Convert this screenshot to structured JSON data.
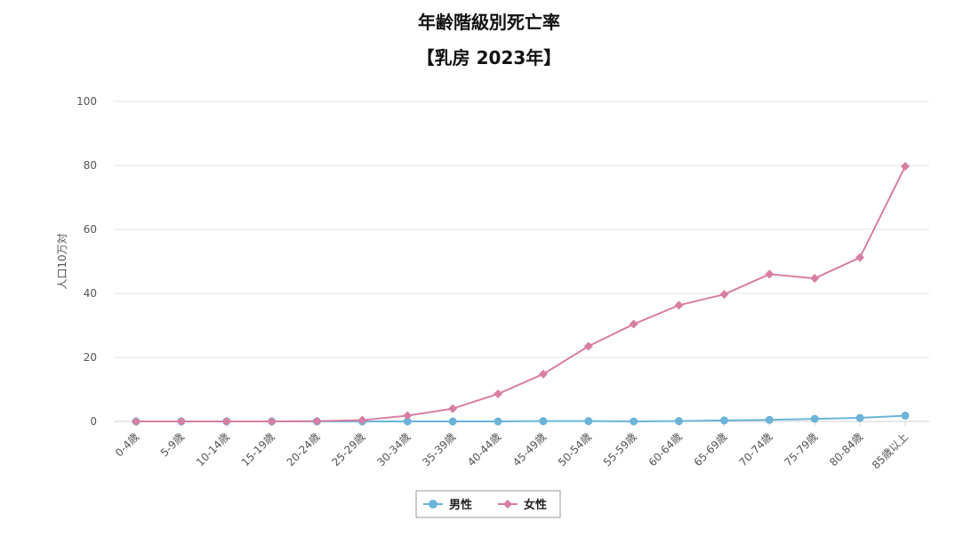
{
  "chart_data": {
    "type": "line",
    "title": "年齢階級別死亡率",
    "subtitle": "【乳房 2023年】",
    "ylabel": "人口10万対",
    "xlabel": "",
    "ylim": [
      0,
      100
    ],
    "yticks": [
      0,
      20,
      40,
      60,
      80,
      100
    ],
    "grid": true,
    "legend_position": "bottom-center",
    "categories": [
      "0-4歳",
      "5-9歳",
      "10-14歳",
      "15-19歳",
      "20-24歳",
      "25-29歳",
      "30-34歳",
      "35-39歳",
      "40-44歳",
      "45-49歳",
      "50-54歳",
      "55-59歳",
      "60-64歳",
      "65-69歳",
      "70-74歳",
      "75-79歳",
      "80-84歳",
      "85歳以上"
    ],
    "series": [
      {
        "name": "男性",
        "color": "#6bb3d9",
        "marker": "circle",
        "values": [
          0,
          0,
          0,
          0,
          0,
          0,
          0,
          0,
          0,
          0.1,
          0.1,
          0,
          0.1,
          0.3,
          0.5,
          0.8,
          1.1,
          1.8
        ]
      },
      {
        "name": "女性",
        "color": "#d97ea3",
        "marker": "diamond",
        "values": [
          0,
          0,
          0,
          0,
          0.1,
          0.4,
          1.8,
          4.0,
          8.6,
          14.8,
          23.5,
          30.4,
          36.3,
          39.7,
          46.0,
          44.7,
          51.2,
          79.7
        ]
      }
    ]
  }
}
